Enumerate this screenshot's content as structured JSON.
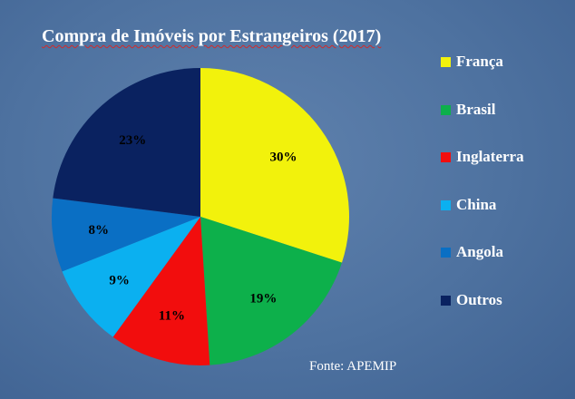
{
  "chart_data": {
    "type": "pie",
    "title": "Compra de Imóveis por Estrangeiros (2017)",
    "source": "Fonte: APEMIP",
    "legend_position": "right",
    "slices": [
      {
        "label": "França",
        "value": 30,
        "value_label": "30%",
        "color": "#f2f20c"
      },
      {
        "label": "Brasil",
        "value": 19,
        "value_label": "19%",
        "color": "#0db04b"
      },
      {
        "label": "Inglaterra",
        "value": 11,
        "value_label": "11%",
        "color": "#f20d0d"
      },
      {
        "label": "China",
        "value": 9,
        "value_label": "9%",
        "color": "#0bb0f0"
      },
      {
        "label": "Angola",
        "value": 8,
        "value_label": "8%",
        "color": "#0a6fc4"
      },
      {
        "label": "Outros",
        "value": 23,
        "value_label": "23%",
        "color": "#0a2260"
      }
    ]
  }
}
